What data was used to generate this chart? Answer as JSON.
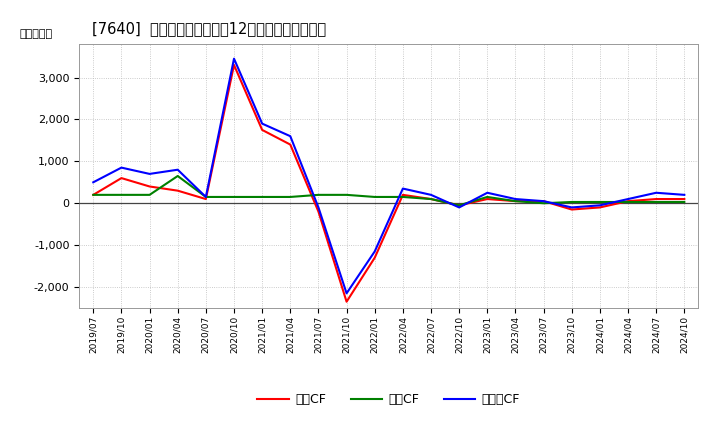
{
  "title": "[7640]  キャッシュフローの12か月移動合計の推移",
  "ylabel": "（百万円）",
  "background_color": "#ffffff",
  "grid_color": "#bbbbbb",
  "x_labels": [
    "2019/07",
    "2019/10",
    "2020/01",
    "2020/04",
    "2020/07",
    "2020/10",
    "2021/01",
    "2021/04",
    "2021/07",
    "2021/10",
    "2022/01",
    "2022/04",
    "2022/07",
    "2022/10",
    "2023/01",
    "2023/04",
    "2023/07",
    "2023/10",
    "2024/01",
    "2024/04",
    "2024/07",
    "2024/10"
  ],
  "operating_cf": [
    200,
    600,
    400,
    300,
    100,
    3300,
    1750,
    1400,
    -200,
    -2350,
    -1300,
    200,
    100,
    -50,
    100,
    50,
    50,
    -150,
    -100,
    50,
    100,
    100
  ],
  "investing_cf": [
    200,
    200,
    200,
    650,
    150,
    150,
    150,
    150,
    200,
    200,
    150,
    150,
    100,
    -50,
    150,
    50,
    0,
    30,
    30,
    30,
    30,
    30
  ],
  "free_cf": [
    500,
    850,
    700,
    800,
    150,
    3450,
    1900,
    1600,
    -100,
    -2150,
    -1150,
    350,
    200,
    -100,
    250,
    100,
    50,
    -100,
    -50,
    100,
    250,
    200
  ],
  "operating_color": "#ff0000",
  "investing_color": "#008000",
  "free_color": "#0000ff",
  "ylim": [
    -2500,
    3800
  ],
  "yticks": [
    -2000,
    -1000,
    0,
    1000,
    2000,
    3000
  ],
  "legend_labels": [
    "営業CF",
    "投資CF",
    "フリーCF"
  ]
}
